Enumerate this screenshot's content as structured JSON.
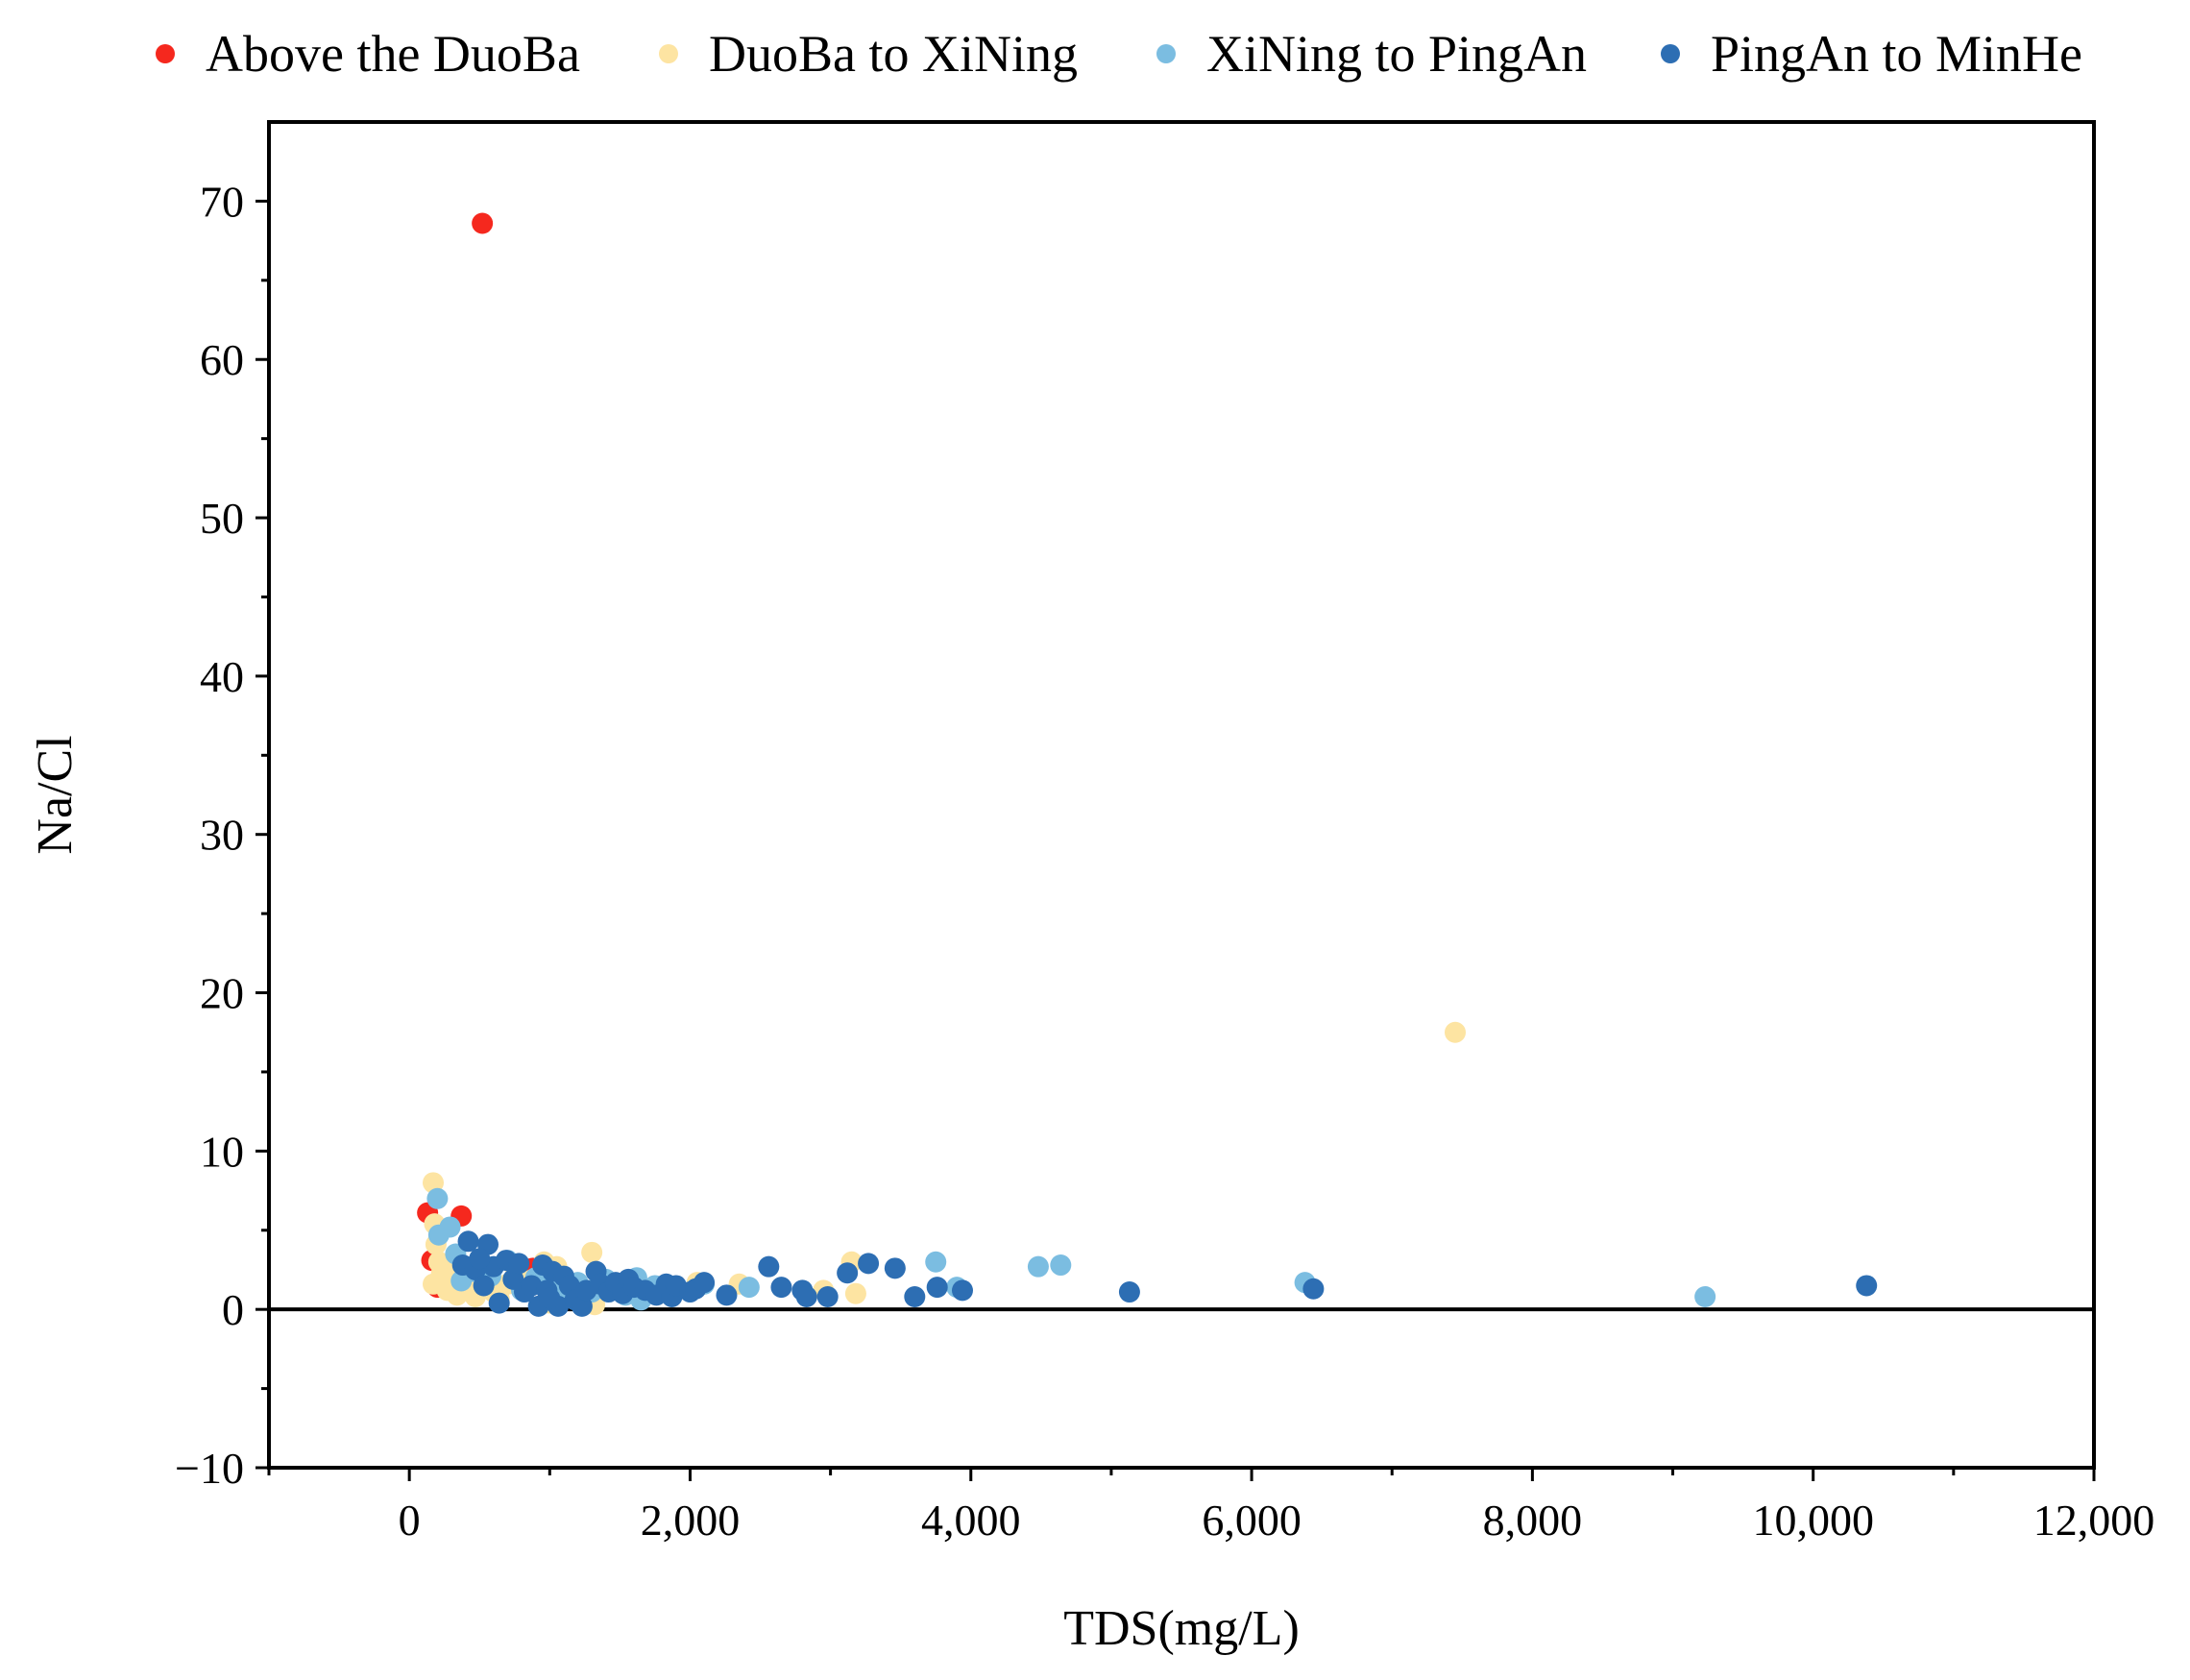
{
  "chart_data": {
    "type": "scatter",
    "title": "",
    "xlabel": "TDS(mg/L)",
    "ylabel": "Na/Cl",
    "xlim": [
      -1000,
      12000
    ],
    "ylim": [
      -10,
      75
    ],
    "x_ticks": [
      0,
      2000,
      4000,
      6000,
      8000,
      10000,
      12000
    ],
    "x_tick_labels": [
      "0",
      "2,000",
      "4,000",
      "6,000",
      "8,000",
      "10,000",
      "12,000"
    ],
    "y_ticks": [
      -10,
      0,
      10,
      20,
      30,
      40,
      50,
      60,
      70
    ],
    "y_tick_labels": [
      "−10",
      "0",
      "10",
      "20",
      "30",
      "40",
      "50",
      "60",
      "70"
    ],
    "reference_line_y": 0,
    "grid": false,
    "legend_position": "top",
    "series": [
      {
        "name": "Above the DuoBa",
        "color": "#f5281e",
        "points": [
          [
            520,
            68.6
          ],
          [
            130,
            6.1
          ],
          [
            370,
            5.9
          ],
          [
            160,
            3.1
          ],
          [
            240,
            2.5
          ],
          [
            310,
            1.8
          ],
          [
            420,
            2.2
          ],
          [
            880,
            2.6
          ],
          [
            200,
            1.4
          ]
        ]
      },
      {
        "name": "DuoBa to XiNing",
        "color": "#fde4a2",
        "points": [
          [
            7450,
            17.5
          ],
          [
            170,
            8.0
          ],
          [
            180,
            5.4
          ],
          [
            190,
            4.1
          ],
          [
            210,
            3.0
          ],
          [
            230,
            2.3
          ],
          [
            250,
            1.8
          ],
          [
            170,
            1.6
          ],
          [
            270,
            1.2
          ],
          [
            300,
            2.6
          ],
          [
            340,
            0.9
          ],
          [
            360,
            1.9
          ],
          [
            420,
            1.4
          ],
          [
            470,
            0.8
          ],
          [
            520,
            2.3
          ],
          [
            600,
            1.1
          ],
          [
            700,
            1.6
          ],
          [
            820,
            1.3
          ],
          [
            960,
            3.0
          ],
          [
            1050,
            2.7
          ],
          [
            1120,
            1.8
          ],
          [
            1200,
            0.6
          ],
          [
            1300,
            3.6
          ],
          [
            1320,
            0.3
          ],
          [
            1450,
            1.5
          ],
          [
            1650,
            1.0
          ],
          [
            2050,
            1.7
          ],
          [
            2350,
            1.6
          ],
          [
            2950,
            1.2
          ],
          [
            3150,
            3.0
          ],
          [
            3180,
            1.0
          ],
          [
            1000,
            0.4
          ],
          [
            880,
            1.9
          ],
          [
            760,
            2.4
          ],
          [
            640,
            0.7
          ]
        ]
      },
      {
        "name": "XiNing to PingAn",
        "color": "#7bbde1",
        "points": [
          [
            200,
            7.0
          ],
          [
            210,
            4.7
          ],
          [
            290,
            5.2
          ],
          [
            330,
            3.5
          ],
          [
            370,
            1.8
          ],
          [
            450,
            2.4
          ],
          [
            580,
            2.1
          ],
          [
            700,
            3.1
          ],
          [
            800,
            1.2
          ],
          [
            900,
            2.0
          ],
          [
            1000,
            1.4
          ],
          [
            1100,
            0.9
          ],
          [
            1200,
            1.7
          ],
          [
            1300,
            1.1
          ],
          [
            1400,
            1.9
          ],
          [
            1500,
            1.3
          ],
          [
            1620,
            2.0
          ],
          [
            1650,
            0.6
          ],
          [
            1750,
            1.5
          ],
          [
            1900,
            1.3
          ],
          [
            2100,
            1.6
          ],
          [
            2420,
            1.4
          ],
          [
            3750,
            3.0
          ],
          [
            3900,
            1.4
          ],
          [
            4480,
            2.7
          ],
          [
            4640,
            2.8
          ],
          [
            6380,
            1.7
          ],
          [
            9230,
            0.8
          ],
          [
            1280,
            1.2
          ],
          [
            1540,
            0.9
          ]
        ]
      },
      {
        "name": "PingAn to MinHe",
        "color": "#2d6eb3",
        "points": [
          [
            420,
            4.3
          ],
          [
            560,
            4.1
          ],
          [
            380,
            2.8
          ],
          [
            470,
            2.5
          ],
          [
            530,
            1.5
          ],
          [
            600,
            2.7
          ],
          [
            640,
            0.4
          ],
          [
            690,
            3.1
          ],
          [
            740,
            1.9
          ],
          [
            780,
            2.9
          ],
          [
            820,
            1.1
          ],
          [
            870,
            1.5
          ],
          [
            920,
            0.2
          ],
          [
            950,
            2.8
          ],
          [
            980,
            1.2
          ],
          [
            1020,
            2.4
          ],
          [
            1060,
            0.2
          ],
          [
            1100,
            2.1
          ],
          [
            1140,
            1.5
          ],
          [
            1180,
            0.6
          ],
          [
            1230,
            0.2
          ],
          [
            1260,
            1.2
          ],
          [
            1330,
            2.4
          ],
          [
            1360,
            1.6
          ],
          [
            1420,
            1.1
          ],
          [
            1470,
            1.7
          ],
          [
            1520,
            1.0
          ],
          [
            1560,
            1.9
          ],
          [
            1600,
            1.4
          ],
          [
            1680,
            1.2
          ],
          [
            1760,
            0.9
          ],
          [
            1830,
            1.6
          ],
          [
            1870,
            0.8
          ],
          [
            1900,
            1.5
          ],
          [
            2000,
            1.1
          ],
          [
            2040,
            1.3
          ],
          [
            2100,
            1.7
          ],
          [
            2260,
            0.9
          ],
          [
            2560,
            2.7
          ],
          [
            2650,
            1.4
          ],
          [
            2800,
            1.2
          ],
          [
            2830,
            0.8
          ],
          [
            2980,
            0.8
          ],
          [
            3120,
            2.3
          ],
          [
            3270,
            2.9
          ],
          [
            3460,
            2.6
          ],
          [
            3600,
            0.8
          ],
          [
            3760,
            1.4
          ],
          [
            3940,
            1.2
          ],
          [
            5130,
            1.1
          ],
          [
            6440,
            1.3
          ],
          [
            10380,
            1.5
          ],
          [
            500,
            3.2
          ],
          [
            1000,
            0.7
          ]
        ]
      }
    ]
  }
}
